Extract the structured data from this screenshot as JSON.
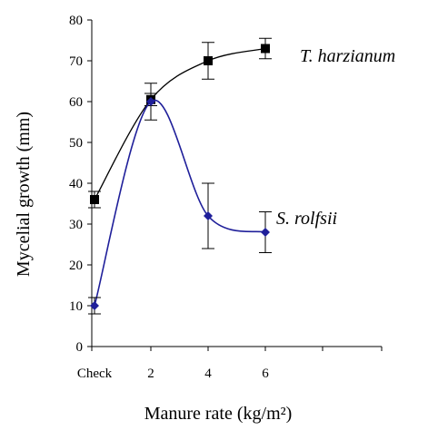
{
  "chart_data": {
    "type": "line",
    "xlabel": "Manure rate (kg/m²)",
    "ylabel": "Mycelial growth (mm)",
    "categories": [
      "Check",
      "2",
      "4",
      "6"
    ],
    "ylim": [
      0,
      80
    ],
    "yticks": [
      0,
      10,
      20,
      30,
      40,
      50,
      60,
      70,
      80
    ],
    "grid": false,
    "series": [
      {
        "name": "T. harzianum",
        "values": [
          36,
          60.5,
          70,
          73
        ],
        "errors": [
          2,
          1.5,
          4.5,
          2.5
        ],
        "color": "#000000",
        "marker": "square"
      },
      {
        "name": "S. rolfsii",
        "values": [
          10,
          60,
          32,
          28
        ],
        "errors": [
          2,
          4.5,
          8,
          5
        ],
        "color": "#1f1f9a",
        "marker": "diamond"
      }
    ]
  }
}
